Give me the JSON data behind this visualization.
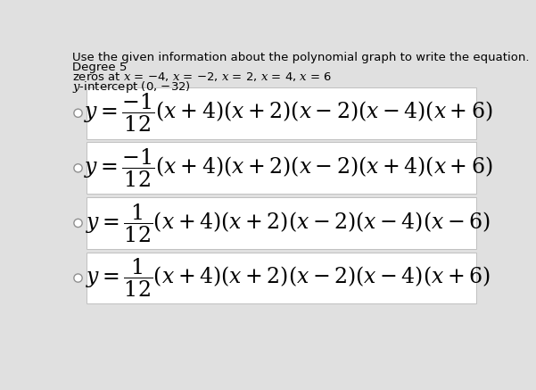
{
  "title_text": "Use the given information about the polynomial graph to write the equation.",
  "info_line1": "Degree 5",
  "info_line2": "zeros at x = −4, x = −2, x = 2, x = 4, x = 6",
  "info_line3": "y-intercept (0, −32)",
  "options": [
    {
      "latex": "$y = \\dfrac{-1}{12}(x+4)(x+2)(x-2)(x-4)(x+6)$"
    },
    {
      "latex": "$y = \\dfrac{-1}{12}(x+4)(x+2)(x-2)(x+4)(x+6)$"
    },
    {
      "latex": "$y = \\dfrac{1}{12}(x+4)(x+2)(x-2)(x-4)(x-6)$"
    },
    {
      "latex": "$y = \\dfrac{1}{12}(x+4)(x+2)(x-2)(x-4)(x+6)$"
    }
  ],
  "bg_color": "#e0e0e0",
  "box_color": "#ffffff",
  "box_border": "#c0c0c0",
  "title_fontsize": 9.5,
  "info_fontsize": 9.5,
  "eq_fontsize": 17,
  "radio_color": "#909090"
}
